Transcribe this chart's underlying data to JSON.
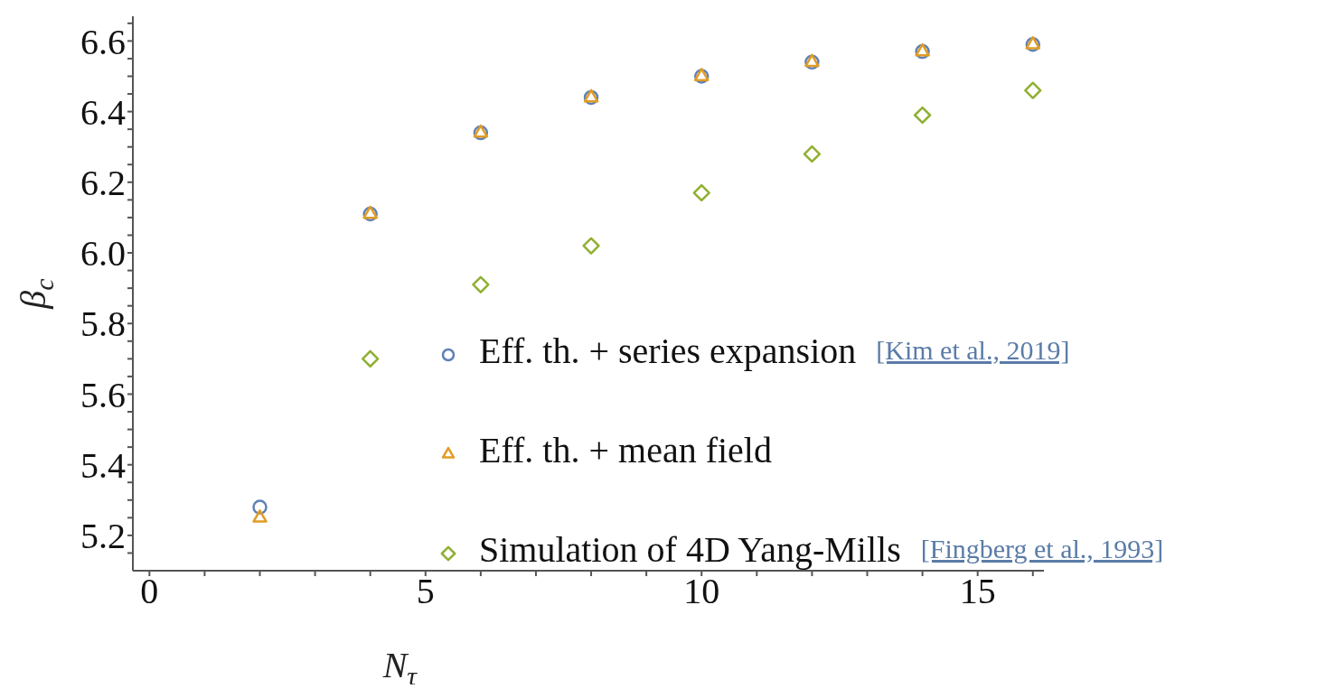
{
  "chart_data": {
    "type": "scatter",
    "xlabel": "N$_{τ}$",
    "ylabel": "β$_{c}$",
    "xlim": [
      -0.3,
      16.2
    ],
    "ylim": [
      5.1,
      6.67
    ],
    "xticks": [
      0,
      {
        "value": 1,
        "label": null
      },
      {
        "value": 2,
        "label": null
      },
      {
        "value": 3,
        "label": null
      },
      {
        "value": 4,
        "label": null
      },
      5,
      {
        "value": 6,
        "label": null
      },
      {
        "value": 7,
        "label": null
      },
      {
        "value": 8,
        "label": null
      },
      {
        "value": 9,
        "label": null
      },
      10,
      {
        "value": 11,
        "label": null
      },
      {
        "value": 12,
        "label": null
      },
      {
        "value": 13,
        "label": null
      },
      {
        "value": 14,
        "label": null
      },
      15,
      {
        "value": 16,
        "label": null
      }
    ],
    "yticks": [
      {
        "value": 5.15,
        "label": null
      },
      5.2,
      {
        "value": 5.25,
        "label": null
      },
      {
        "value": 5.3,
        "label": null
      },
      {
        "value": 5.35,
        "label": null
      },
      5.4,
      {
        "value": 5.45,
        "label": null
      },
      {
        "value": 5.5,
        "label": null
      },
      {
        "value": 5.55,
        "label": null
      },
      5.6,
      {
        "value": 5.65,
        "label": null
      },
      {
        "value": 5.7,
        "label": null
      },
      {
        "value": 5.75,
        "label": null
      },
      5.8,
      {
        "value": 5.85,
        "label": null
      },
      {
        "value": 5.9,
        "label": null
      },
      {
        "value": 5.95,
        "label": null
      },
      {
        "value": 6,
        "label": "6.0"
      },
      {
        "value": 6.05,
        "label": null
      },
      {
        "value": 6.1,
        "label": null
      },
      {
        "value": 6.15,
        "label": null
      },
      6.2,
      {
        "value": 6.25,
        "label": null
      },
      {
        "value": 6.3,
        "label": null
      },
      {
        "value": 6.35,
        "label": null
      },
      6.4,
      {
        "value": 6.45,
        "label": null
      },
      {
        "value": 6.5,
        "label": null
      },
      {
        "value": 6.55,
        "label": null
      },
      6.6,
      {
        "value": 6.65,
        "label": null
      }
    ],
    "grid": false,
    "legend": "bottom right",
    "series": [
      {
        "name": "Eff. th. + series expansion [Kim et al., 2019]",
        "color": "#5e81b5",
        "marker": "circle",
        "x": [
          2,
          4,
          6,
          8,
          10,
          12,
          14,
          16
        ],
        "values": [
          5.28,
          6.11,
          6.34,
          6.44,
          6.5,
          6.54,
          6.57,
          6.59
        ]
      },
      {
        "name": "Eff. th. + mean field",
        "color": "#e19c24",
        "marker": "triangle",
        "x": [
          2,
          4,
          6,
          8,
          10,
          12,
          14,
          16
        ],
        "values": [
          5.25,
          6.11,
          6.34,
          6.44,
          6.5,
          6.54,
          6.57,
          6.59
        ]
      },
      {
        "name": "Simulation of 4D Yang-Mills [Fingberg et al., 1993]",
        "color": "#8fb032",
        "marker": "diamond",
        "x": [
          4,
          6,
          8,
          10,
          12,
          14,
          16
        ],
        "values": [
          5.7,
          5.91,
          6.02,
          6.17,
          6.28,
          6.39,
          6.46
        ]
      }
    ]
  }
}
